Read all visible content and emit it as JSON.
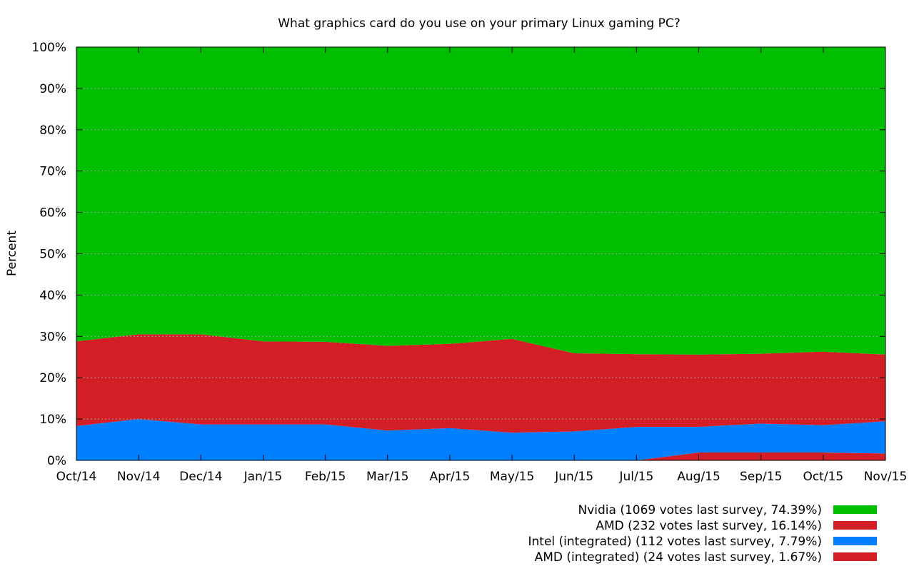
{
  "chart_data": {
    "type": "area",
    "stacked": true,
    "title": "What graphics card do you use on your primary Linux gaming PC?",
    "xlabel": "",
    "ylabel": "Percent",
    "ylim": [
      0,
      100
    ],
    "y_ticks": [
      "0%",
      "10%",
      "20%",
      "30%",
      "40%",
      "50%",
      "60%",
      "70%",
      "80%",
      "90%",
      "100%"
    ],
    "grid": true,
    "legend_position": "bottom-right",
    "categories": [
      "Oct/14",
      "Nov/14",
      "Dec/14",
      "Jan/15",
      "Feb/15",
      "Mar/15",
      "Apr/15",
      "May/15",
      "Jun/15",
      "Jul/15",
      "Aug/15",
      "Sep/15",
      "Oct/15",
      "Nov/15"
    ],
    "series": [
      {
        "name": "AMD (integrated)",
        "legend": "AMD (integrated) (24 votes last survey, 1.67%)",
        "color": "#d21e24",
        "values": [
          0,
          0,
          0,
          0,
          0,
          0,
          0,
          0,
          0,
          0,
          1.9,
          1.9,
          1.9,
          1.67
        ]
      },
      {
        "name": "Intel (integrated)",
        "legend": "Intel (integrated) (112 votes last survey, 7.79%)",
        "color": "#0080ff",
        "values": [
          8.3,
          10.0,
          8.7,
          8.7,
          8.7,
          7.2,
          7.8,
          6.7,
          7.0,
          8.1,
          6.2,
          7.0,
          6.6,
          7.79
        ]
      },
      {
        "name": "AMD",
        "legend": "AMD (232 votes last survey, 16.14%)",
        "color": "#d21e24",
        "values": [
          20.5,
          20.5,
          21.8,
          20.1,
          20.0,
          20.5,
          20.4,
          22.7,
          18.9,
          17.6,
          17.5,
          16.9,
          17.8,
          16.14
        ]
      },
      {
        "name": "Nvidia",
        "legend": "Nvidia (1069 votes last survey, 74.39%)",
        "color": "#00bf00",
        "values": [
          71.2,
          69.5,
          69.5,
          71.2,
          71.3,
          72.3,
          71.8,
          70.6,
          74.1,
          74.3,
          74.4,
          74.2,
          73.7,
          74.39
        ]
      }
    ]
  }
}
